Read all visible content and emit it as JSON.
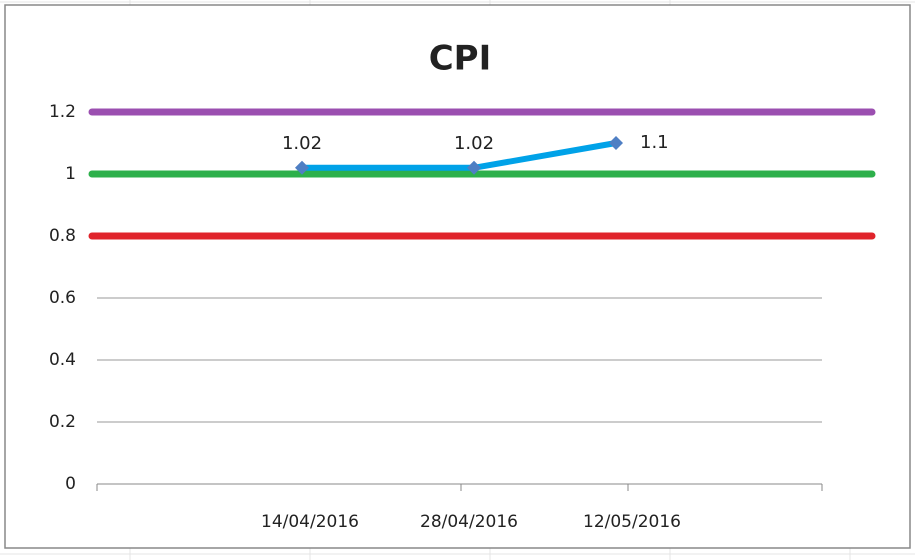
{
  "chart_data": {
    "type": "line",
    "title": "CPI",
    "categories": [
      "14/04/2016",
      "28/04/2016",
      "12/05/2016"
    ],
    "series": [
      {
        "color": "#00a2e8",
        "values": [
          1.02,
          1.02,
          1.1
        ],
        "value_labels": [
          "1.02",
          "1.02",
          "1.1"
        ]
      }
    ],
    "reference_lines": [
      {
        "value": 1.2,
        "color": "#9b4fb0"
      },
      {
        "value": 1,
        "color": "#2db04b"
      },
      {
        "value": 0.8,
        "color": "#e0242b"
      }
    ],
    "ylim": [
      0,
      1.2
    ],
    "yticks": [
      0,
      0.2,
      0.4,
      0.6,
      0.8,
      1,
      1.2
    ],
    "grid": true
  }
}
